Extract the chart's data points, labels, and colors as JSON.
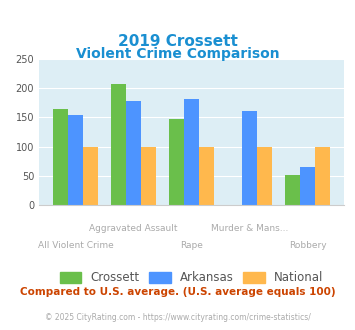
{
  "title_line1": "2019 Crossett",
  "title_line2": "Violent Crime Comparison",
  "categories": [
    "All Violent Crime",
    "Aggravated Assault",
    "Rape",
    "Murder & Mans...",
    "Robbery"
  ],
  "crossett": [
    165,
    207,
    147,
    0,
    51
  ],
  "arkansas": [
    154,
    179,
    181,
    161,
    65
  ],
  "national": [
    100,
    100,
    100,
    100,
    100
  ],
  "colors": {
    "crossett": "#6abf4b",
    "arkansas": "#4d94ff",
    "national": "#ffb84d"
  },
  "ylim": [
    0,
    250
  ],
  "yticks": [
    0,
    50,
    100,
    150,
    200,
    250
  ],
  "bg_color": "#ddeef5",
  "title_color": "#1a8fd1",
  "label_color": "#aaaaaa",
  "footer_text": "Compared to U.S. average. (U.S. average equals 100)",
  "copyright_text": "© 2025 CityRating.com - https://www.cityrating.com/crime-statistics/",
  "footer_color": "#cc4400",
  "copyright_color": "#aaaaaa",
  "top_labels": {
    "1": "Aggravated Assault",
    "3": "Murder & Mans..."
  },
  "bottom_labels": {
    "0": "All Violent Crime",
    "2": "Rape",
    "4": "Robbery"
  }
}
